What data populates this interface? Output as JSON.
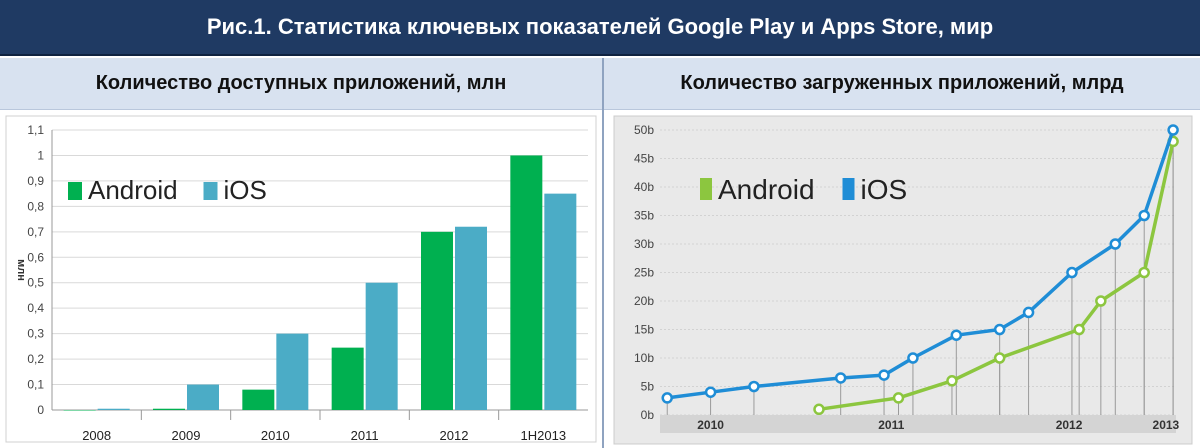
{
  "page": {
    "title": "Рис.1. Статистика ключевых показателей Google Play и Apps Store, мир"
  },
  "chart_data": [
    {
      "type": "bar",
      "panel_title": "Количество доступных приложений, млн",
      "ylabel": "млн",
      "categories": [
        "2008",
        "2009",
        "2010",
        "2011",
        "2012",
        "1H2013"
      ],
      "ylim": [
        0,
        1.1
      ],
      "yticks": [
        "0",
        "0,1",
        "0,2",
        "0,3",
        "0,4",
        "0,5",
        "0,6",
        "0,7",
        "0,8",
        "0,9",
        "1",
        "1,1"
      ],
      "series": [
        {
          "name": "Android",
          "color": "#00b050",
          "values": [
            0.0,
            0.005,
            0.08,
            0.245,
            0.7,
            1.0
          ]
        },
        {
          "name": "iOS",
          "color": "#4bacc6",
          "values": [
            0.005,
            0.1,
            0.3,
            0.5,
            0.72,
            0.85
          ]
        }
      ],
      "grid": true,
      "legend": "top-left"
    },
    {
      "type": "line",
      "panel_title": "Количество загруженных приложений, млрд",
      "ylim": [
        0,
        50
      ],
      "yticks": [
        "0b",
        "5b",
        "10b",
        "15b",
        "20b",
        "25b",
        "30b",
        "35b",
        "40b",
        "45b",
        "50b"
      ],
      "xlabels": [
        "2010",
        "2011",
        "2012",
        "2013"
      ],
      "series": [
        {
          "name": "Android",
          "color": "#8cc63f",
          "x": [
            2010.05,
            2010.6,
            2010.97,
            2011.3,
            2011.85,
            2012.0,
            2012.3,
            2012.5
          ],
          "values": [
            1,
            3,
            6,
            10,
            15,
            20,
            25,
            48
          ]
        },
        {
          "name": "iOS",
          "color": "#1f8dd6",
          "x": [
            2009.0,
            2009.3,
            2009.6,
            2010.2,
            2010.5,
            2010.7,
            2011.0,
            2011.3,
            2011.5,
            2011.8,
            2012.1,
            2012.3,
            2012.5
          ],
          "values": [
            3,
            4,
            5,
            6.5,
            7,
            10,
            14,
            15,
            18,
            25,
            30,
            35,
            50
          ]
        }
      ],
      "grid": true,
      "legend": "top-left"
    }
  ]
}
